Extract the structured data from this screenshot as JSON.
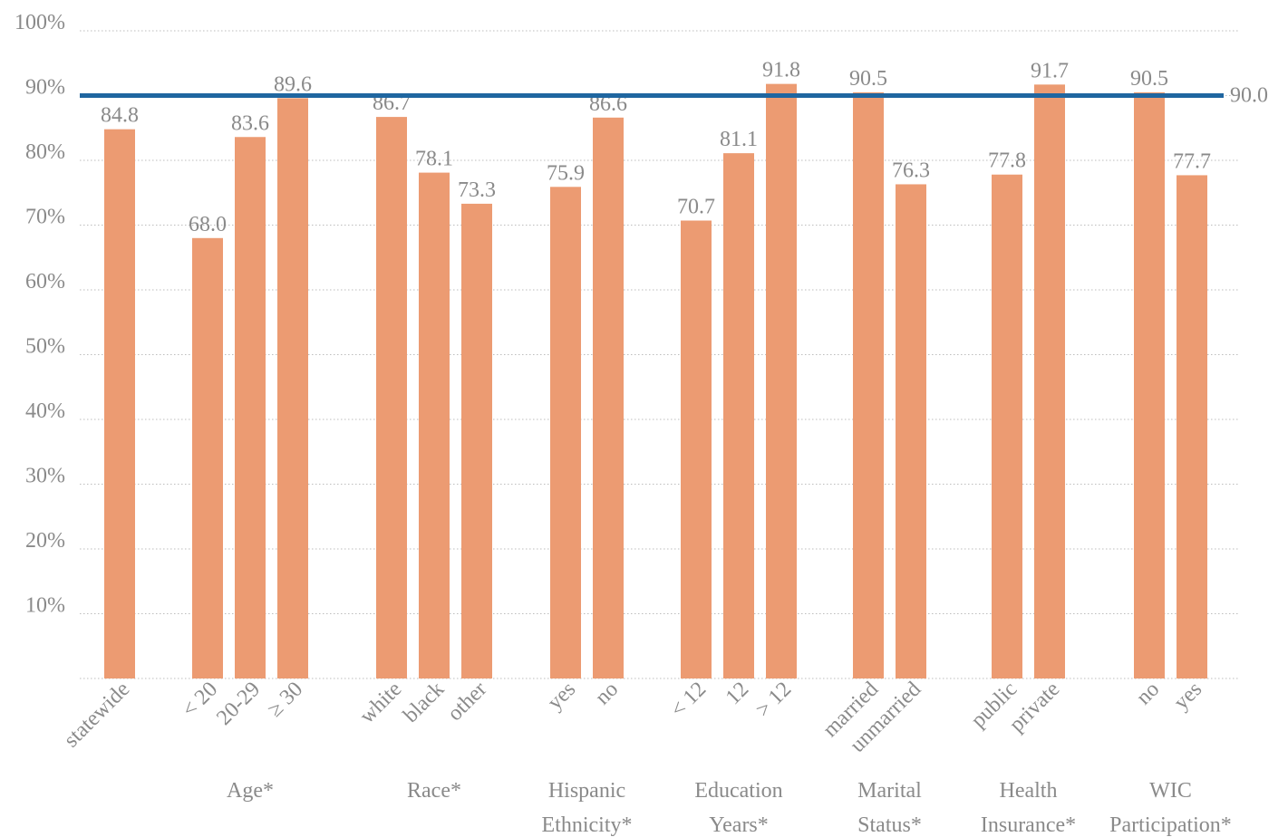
{
  "chart_data": {
    "type": "bar",
    "ylim": [
      0,
      100
    ],
    "yticks": [
      {
        "value": 100,
        "label": "100%"
      },
      {
        "value": 90,
        "label": "90%"
      },
      {
        "value": 80,
        "label": "80%"
      },
      {
        "value": 70,
        "label": "70%"
      },
      {
        "value": 60,
        "label": "60%"
      },
      {
        "value": 50,
        "label": "50%"
      },
      {
        "value": 40,
        "label": "40%"
      },
      {
        "value": 30,
        "label": "30%"
      },
      {
        "value": 20,
        "label": "20%"
      },
      {
        "value": 10,
        "label": "10%"
      }
    ],
    "grid": true,
    "bar_color": "#ec9b72",
    "reference_line": {
      "value": 90.0,
      "label": "90.0",
      "color": "#1f66a0"
    },
    "groups": [
      {
        "label": [],
        "bars": [
          {
            "category": "statewide",
            "value": 84.8,
            "label": "84.8"
          }
        ]
      },
      {
        "label": [
          "Age*"
        ],
        "bars": [
          {
            "category": "< 20",
            "value": 68.0,
            "label": "68.0"
          },
          {
            "category": "20-29",
            "value": 83.6,
            "label": "83.6"
          },
          {
            "category": "≥ 30",
            "value": 89.6,
            "label": "89.6"
          }
        ]
      },
      {
        "label": [
          "Race*"
        ],
        "bars": [
          {
            "category": "white",
            "value": 86.7,
            "label": "86.7"
          },
          {
            "category": "black",
            "value": 78.1,
            "label": "78.1"
          },
          {
            "category": "other",
            "value": 73.3,
            "label": "73.3"
          }
        ]
      },
      {
        "label": [
          "Hispanic",
          "Ethnicity*"
        ],
        "bars": [
          {
            "category": "yes",
            "value": 75.9,
            "label": "75.9"
          },
          {
            "category": "no",
            "value": 86.6,
            "label": "86.6"
          }
        ]
      },
      {
        "label": [
          "Education",
          "Years*"
        ],
        "bars": [
          {
            "category": "< 12",
            "value": 70.7,
            "label": "70.7"
          },
          {
            "category": "12",
            "value": 81.1,
            "label": "81.1"
          },
          {
            "category": "> 12",
            "value": 91.8,
            "label": "91.8"
          }
        ]
      },
      {
        "label": [
          "Marital",
          "Status*"
        ],
        "bars": [
          {
            "category": "married",
            "value": 90.5,
            "label": "90.5"
          },
          {
            "category": "unmarried",
            "value": 76.3,
            "label": "76.3"
          }
        ]
      },
      {
        "label": [
          "Health",
          "Insurance*"
        ],
        "bars": [
          {
            "category": "public",
            "value": 77.8,
            "label": "77.8"
          },
          {
            "category": "private",
            "value": 91.7,
            "label": "91.7"
          }
        ]
      },
      {
        "label": [
          "WIC",
          "Participation*"
        ],
        "bars": [
          {
            "category": "no",
            "value": 90.5,
            "label": "90.5"
          },
          {
            "category": "yes",
            "value": 77.7,
            "label": "77.7"
          }
        ]
      }
    ]
  }
}
